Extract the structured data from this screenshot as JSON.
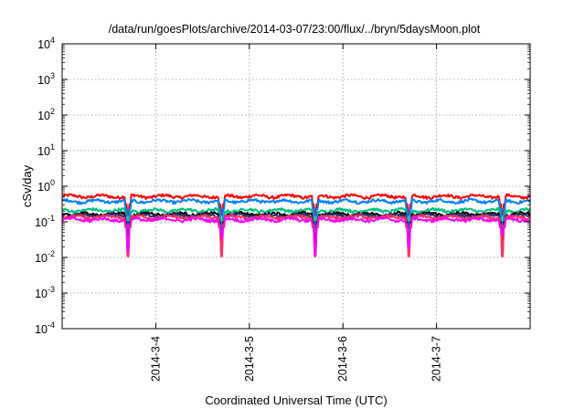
{
  "chart_data": {
    "type": "line",
    "title": "/data/run/goesPlots/archive/2014-03-07/23:00/flux/../bryn/5daysMoon.plot",
    "xlabel": "Coordinated Universal Time (UTC)",
    "ylabel": "cSv/day",
    "yscale": "log",
    "ylim_exp": [
      -4,
      4
    ],
    "ytick_exponents": [
      -4,
      -3,
      -2,
      -1,
      0,
      1,
      2,
      3,
      4
    ],
    "x_domain": [
      "2014-03-03",
      "2014-03-08"
    ],
    "x_ticks": [
      "2014-3-4",
      "2014-3-5",
      "2014-3-6",
      "2014-3-7"
    ],
    "grid": true,
    "legend": "none",
    "dip_days": [
      0.7,
      1.7,
      2.7,
      3.7,
      4.7
    ],
    "series": [
      {
        "color": "#ff0000",
        "base": 0.52,
        "dip": 0.3
      },
      {
        "color": "#0080ff",
        "base": 0.38,
        "dip": 0.1
      },
      {
        "color": "#00c080",
        "base": 0.21,
        "dip": 0.12
      },
      {
        "color": "#000000",
        "base": 0.165,
        "dip": 0.1
      },
      {
        "color": "#303070",
        "base": 0.15,
        "dip": 0.09
      },
      {
        "color": "#ff3060",
        "base": 0.135,
        "dip": 0.08
      },
      {
        "color": "#ff00ff",
        "base": 0.115,
        "dip": [
          0.014,
          0.035,
          0.012,
          0.018,
          0.045
        ]
      }
    ]
  }
}
